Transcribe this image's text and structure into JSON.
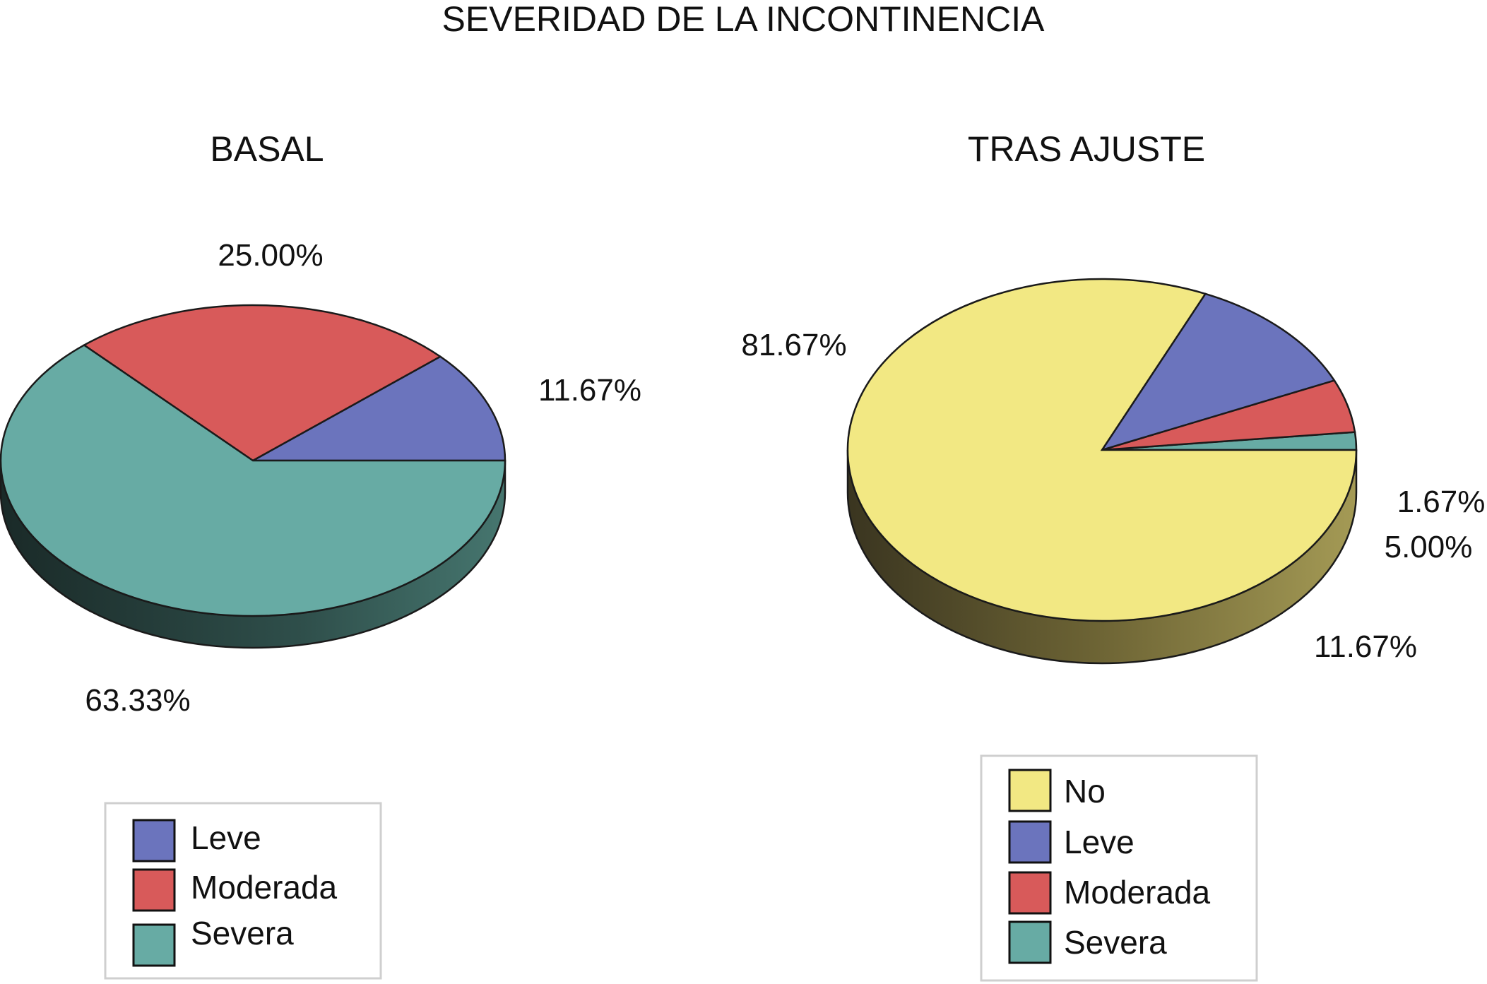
{
  "title": "SEVERIDAD DE LA INCONTINENCIA",
  "chart_data": [
    {
      "type": "pie",
      "title": "BASAL",
      "slices": [
        {
          "name": "Leve",
          "value": 11.67,
          "label": "11.67%",
          "color": "#6b74bd"
        },
        {
          "name": "Moderada",
          "value": 25.0,
          "label": "25.00%",
          "color": "#d85a5a"
        },
        {
          "name": "Severa",
          "value": 63.33,
          "label": "63.33%",
          "color": "#67aba4"
        }
      ],
      "legend": {
        "placement": "bottom",
        "entries": [
          {
            "name": "Leve",
            "color": "#6b74bd"
          },
          {
            "name": "Moderada",
            "color": "#d85a5a"
          },
          {
            "name": "Severa",
            "color": "#67aba4"
          }
        ]
      }
    },
    {
      "type": "pie",
      "title": "TRAS AJUSTE",
      "slices": [
        {
          "name": "Severa",
          "value": 1.67,
          "label": "1.67%",
          "color": "#67aba4"
        },
        {
          "name": "Moderada",
          "value": 5.0,
          "label": "5.00%",
          "color": "#d85a5a"
        },
        {
          "name": "Leve",
          "value": 11.67,
          "label": "11.67%",
          "color": "#6b74bd"
        },
        {
          "name": "No",
          "value": 81.67,
          "label": "81.67%",
          "color": "#f2e883"
        }
      ],
      "legend": {
        "placement": "bottom",
        "entries": [
          {
            "name": "No",
            "color": "#f2e883"
          },
          {
            "name": "Leve",
            "color": "#6b74bd"
          },
          {
            "name": "Moderada",
            "color": "#d85a5a"
          },
          {
            "name": "Severa",
            "color": "#67aba4"
          }
        ]
      }
    }
  ]
}
